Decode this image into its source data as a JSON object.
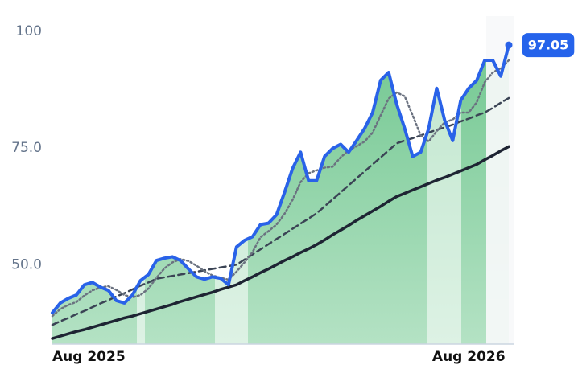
{
  "chart_data": {
    "type": "line",
    "categories": [
      "Aug 2025",
      null,
      null,
      null,
      null,
      null,
      null,
      null,
      null,
      null,
      null,
      null,
      null,
      null,
      null,
      null,
      null,
      null,
      null,
      null,
      null,
      null,
      null,
      null,
      null,
      null,
      null,
      null,
      null,
      null,
      null,
      null,
      null,
      null,
      null,
      null,
      null,
      null,
      null,
      null,
      null,
      null,
      null,
      null,
      null,
      null,
      null,
      null,
      null,
      null,
      null,
      null,
      "Aug 2026",
      null,
      null,
      null,
      null,
      null
    ],
    "series": [
      {
        "color": "#2962e8",
        "style": "solid",
        "fill": "#86d3a3",
        "values": [
          39.7,
          41.8,
          42.8,
          43.5,
          45.7,
          46.2,
          45.2,
          44.5,
          42.3,
          41.8,
          43.5,
          46.6,
          47.9,
          50.9,
          51.4,
          51.7,
          50.9,
          49.1,
          47.4,
          46.9,
          47.4,
          47.1,
          45.7,
          53.8,
          55.2,
          56.0,
          58.6,
          58.9,
          60.7,
          65.5,
          70.6,
          74.1,
          68.0,
          68.0,
          73.2,
          74.9,
          75.8,
          74.1,
          76.6,
          79.2,
          82.6,
          89.5,
          91.2,
          84.4,
          79.2,
          73.2,
          74.1,
          79.2,
          87.8,
          80.9,
          76.6,
          85.2,
          87.8,
          89.5,
          93.8,
          93.8,
          90.4,
          97.05
        ]
      },
      {
        "color": "#6b7280",
        "style": "dotted",
        "values": [
          39.0,
          40.5,
          41.4,
          42.0,
          43.4,
          44.5,
          45.1,
          45.4,
          44.6,
          43.5,
          43.0,
          43.5,
          44.9,
          47.2,
          49.2,
          50.5,
          51.2,
          50.8,
          49.8,
          48.6,
          47.7,
          47.2,
          46.8,
          48.5,
          50.5,
          52.7,
          55.9,
          57.2,
          58.6,
          60.9,
          63.9,
          67.7,
          69.6,
          70.2,
          70.8,
          71.0,
          73.0,
          74.5,
          75.4,
          76.4,
          78.3,
          82.0,
          85.6,
          86.9,
          86.1,
          82.0,
          77.7,
          76.4,
          78.6,
          80.5,
          81.1,
          82.6,
          82.6,
          84.8,
          89.1,
          91.2,
          92.1,
          93.8
        ]
      },
      {
        "color": "#3b4455",
        "style": "dashed",
        "values": [
          37.1,
          37.9,
          38.6,
          39.4,
          40.1,
          40.9,
          41.7,
          42.4,
          43.2,
          43.9,
          44.7,
          45.5,
          46.2,
          47.0,
          47.3,
          47.6,
          47.9,
          48.2,
          48.5,
          48.8,
          49.1,
          49.4,
          49.7,
          50.0,
          51.1,
          52.2,
          53.3,
          54.4,
          55.5,
          56.6,
          57.7,
          58.8,
          59.9,
          61.0,
          62.5,
          64.0,
          65.5,
          67.0,
          68.5,
          70.0,
          71.5,
          73.0,
          74.5,
          76.0,
          76.6,
          77.1,
          77.7,
          78.3,
          78.9,
          79.4,
          80.0,
          80.7,
          81.3,
          82.0,
          82.6,
          83.6,
          84.7,
          85.7
        ]
      },
      {
        "color": "#1e2433",
        "style": "solid",
        "values": [
          34.2,
          34.7,
          35.2,
          35.7,
          36.1,
          36.6,
          37.1,
          37.6,
          38.1,
          38.6,
          39.0,
          39.5,
          40.0,
          40.5,
          41.0,
          41.5,
          42.1,
          42.6,
          43.1,
          43.6,
          44.1,
          44.7,
          45.2,
          45.7,
          46.6,
          47.4,
          48.3,
          49.1,
          50.0,
          50.9,
          51.7,
          52.6,
          53.4,
          54.3,
          55.3,
          56.4,
          57.4,
          58.4,
          59.5,
          60.5,
          61.5,
          62.5,
          63.6,
          64.6,
          65.3,
          66.0,
          66.7,
          67.4,
          68.1,
          68.7,
          69.4,
          70.1,
          70.8,
          71.5,
          72.5,
          73.4,
          74.4,
          75.3
        ]
      }
    ],
    "ylim": [
      33,
      103.3
    ],
    "yticks": [
      {
        "value": 50,
        "label": "50.0"
      },
      {
        "value": 75,
        "label": "75.0"
      },
      100
    ],
    "last_value_badge": "#2563eb"
  }
}
